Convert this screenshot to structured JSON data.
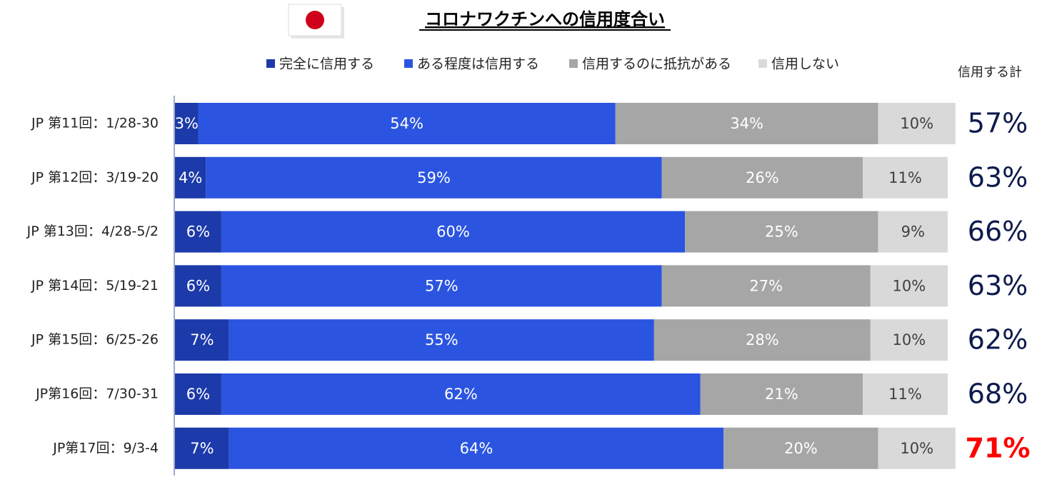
{
  "chart_data": {
    "type": "stacked_barh",
    "title": "コロナワクチンへの信用度合い",
    "categories": [
      "JP 第11回：1/28-30",
      "JP 第12回：3/19-20",
      "JP 第13回：4/28-5/2",
      "JP 第14回：5/19-21",
      "JP 第15回：6/25-26",
      "JP第16回：7/30-31",
      "JP第17回：9/3-4"
    ],
    "series": [
      {
        "name": "完全に信用する",
        "color": "#1c3aa9",
        "label_color": "#ffffff",
        "values": [
          3,
          4,
          6,
          6,
          7,
          6,
          7
        ],
        "value_labels": [
          "3%",
          "4%",
          "6%",
          "6%",
          "7%",
          "6%",
          "7%"
        ]
      },
      {
        "name": "ある程度は信用する",
        "color": "#2b55e0",
        "label_color": "#ffffff",
        "values": [
          54,
          59,
          60,
          57,
          55,
          62,
          64
        ],
        "value_labels": [
          "54%",
          "59%",
          "60%",
          "57%",
          "55%",
          "62%",
          "64%"
        ]
      },
      {
        "name": "信用するのに抵抗がある",
        "color": "#a6a6a6",
        "label_color": "#ffffff",
        "values": [
          34,
          26,
          25,
          27,
          28,
          21,
          20
        ],
        "value_labels": [
          "34%",
          "26%",
          "25%",
          "27%",
          "28%",
          "21%",
          "20%"
        ]
      },
      {
        "name": "信用しない",
        "color": "#d9d9d9",
        "label_color": "#404040",
        "values": [
          10,
          11,
          9,
          10,
          10,
          11,
          10
        ],
        "value_labels": [
          "10%",
          "11%",
          "9%",
          "10%",
          "10%",
          "11%",
          "10%"
        ]
      }
    ],
    "xlim": [
      0,
      100
    ],
    "totals": {
      "name": "信用する計",
      "values": [
        57,
        63,
        66,
        63,
        62,
        68,
        71
      ],
      "value_labels": [
        "57%",
        "63%",
        "66%",
        "63%",
        "62%",
        "68%",
        "71%"
      ],
      "colors": [
        "#0d1a4d",
        "#0d1a4d",
        "#0d1a4d",
        "#0d1a4d",
        "#0d1a4d",
        "#0d1a4d",
        "#ff0000"
      ]
    }
  }
}
